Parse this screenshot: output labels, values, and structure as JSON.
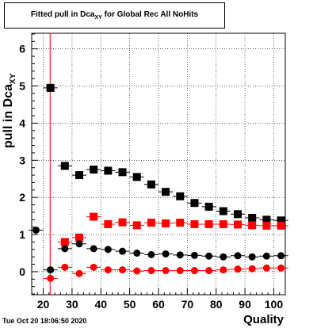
{
  "chart_data": {
    "type": "scatter",
    "title_main": "Fitted pull in Dca",
    "title_sub": "XY",
    "title_tail": " for Global Rec All NoHits",
    "ylabel_main": "pull in Dca",
    "ylabel_sub": "XY",
    "xlabel": "Quality",
    "xlim": [
      16,
      104
    ],
    "ylim": [
      -0.62,
      6.42
    ],
    "x_ticks": [
      20,
      30,
      40,
      50,
      60,
      70,
      80,
      90,
      100
    ],
    "y_ticks": [
      0,
      1,
      2,
      3,
      4,
      5,
      6
    ],
    "grid": true,
    "cut_line_x": 22.4,
    "series": [
      {
        "marker": "square",
        "color": "#000000",
        "x": [
          22.5,
          27.5,
          32.5,
          37.5,
          42.5,
          47.5,
          52.5,
          57.5,
          62.5,
          67.5,
          72.5,
          77.5,
          82.5,
          87.5,
          92.5,
          97.5,
          102.5
        ],
        "y": [
          4.95,
          2.85,
          2.6,
          2.75,
          2.72,
          2.68,
          2.55,
          2.35,
          2.15,
          2.03,
          1.85,
          1.75,
          1.63,
          1.55,
          1.45,
          1.4,
          1.38
        ]
      },
      {
        "marker": "square",
        "color": "#ff0000",
        "x": [
          27.5,
          32.5,
          37.5,
          42.5,
          47.5,
          52.5,
          57.5,
          62.5,
          67.5,
          72.5,
          77.5,
          82.5,
          87.5,
          92.5,
          97.5,
          102.5
        ],
        "y": [
          0.8,
          0.92,
          1.48,
          1.28,
          1.33,
          1.25,
          1.32,
          1.3,
          1.32,
          1.28,
          1.28,
          1.28,
          1.27,
          1.25,
          1.24,
          1.24
        ]
      },
      {
        "marker": "circle",
        "color": "#000000",
        "x": [
          17.5,
          22.5,
          27.5,
          32.5,
          37.5,
          42.5,
          47.5,
          52.5,
          57.5,
          62.5,
          67.5,
          72.5,
          77.5,
          82.5,
          87.5,
          92.5,
          97.5,
          102.5
        ],
        "y": [
          1.12,
          0.05,
          0.62,
          0.75,
          0.62,
          0.6,
          0.55,
          0.5,
          0.46,
          0.48,
          0.45,
          0.44,
          0.42,
          0.4,
          0.43,
          0.4,
          0.42,
          0.43
        ]
      },
      {
        "marker": "circle",
        "color": "#ff0000",
        "x": [
          22.5,
          27.5,
          32.5,
          37.5,
          42.5,
          47.5,
          52.5,
          57.5,
          62.5,
          67.5,
          72.5,
          77.5,
          82.5,
          87.5,
          92.5,
          97.5,
          102.5
        ],
        "y": [
          -0.18,
          0.12,
          -0.05,
          0.12,
          0.05,
          0.05,
          0.02,
          0.03,
          0.03,
          0.03,
          0.03,
          0.03,
          0.05,
          0.07,
          0.08,
          0.1,
          0.1
        ]
      }
    ]
  },
  "footer": {
    "timestamp": "Tue Oct 20 18:06:50 2020"
  }
}
